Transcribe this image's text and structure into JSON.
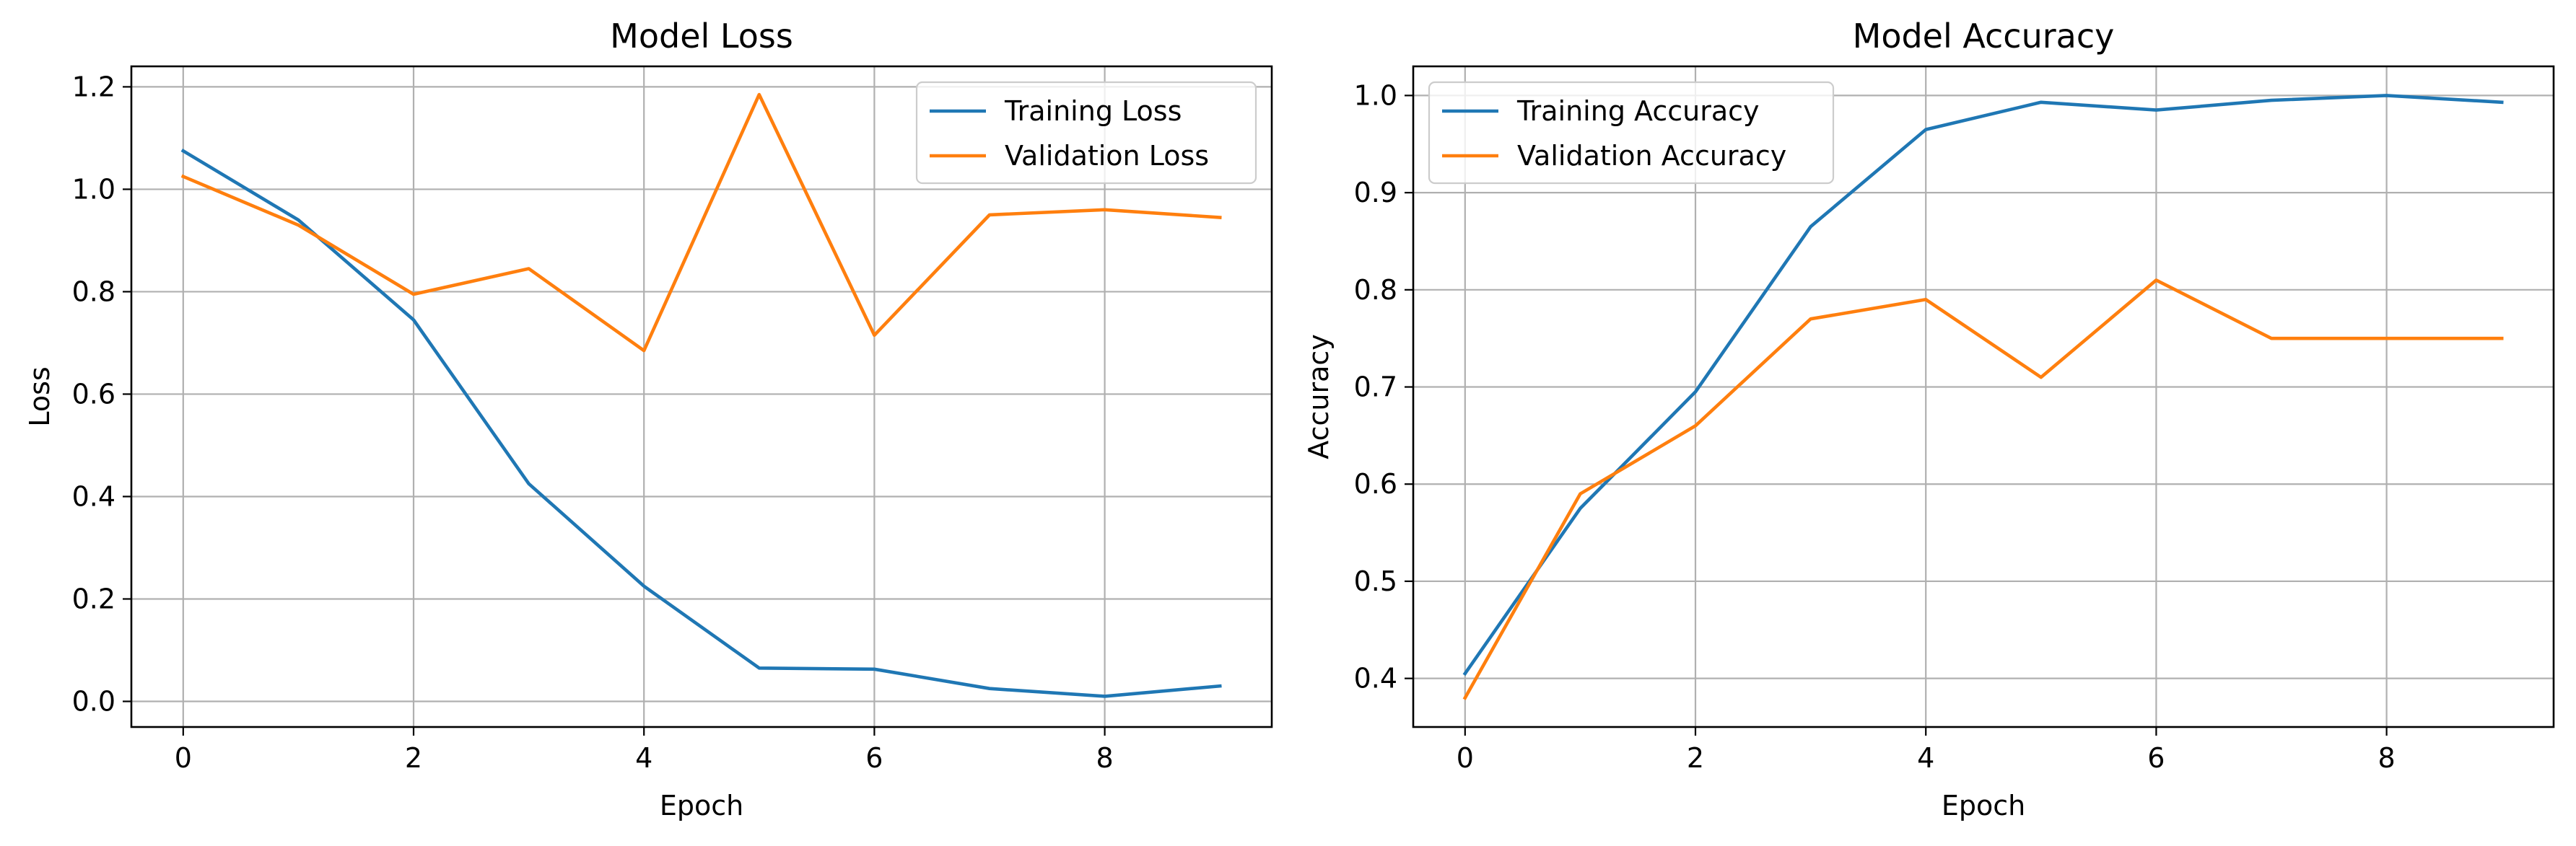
{
  "colors": {
    "series_1": "#1f77b4",
    "series_2": "#ff7f0e",
    "grid": "#b0b0b0"
  },
  "chart_data": [
    {
      "type": "line",
      "title": "Model Loss",
      "xlabel": "Epoch",
      "ylabel": "Loss",
      "x": [
        0,
        1,
        2,
        3,
        4,
        5,
        6,
        7,
        8,
        9
      ],
      "xlim": [
        -0.45,
        9.45
      ],
      "ylim": [
        -0.05,
        1.24
      ],
      "xticks": [
        0,
        2,
        4,
        6,
        8
      ],
      "xtick_labels": [
        "0",
        "2",
        "4",
        "6",
        "8"
      ],
      "yticks": [
        0.0,
        0.2,
        0.4,
        0.6,
        0.8,
        1.0,
        1.2
      ],
      "ytick_labels": [
        "0.0",
        "0.2",
        "0.4",
        "0.6",
        "0.8",
        "1.0",
        "1.2"
      ],
      "grid": true,
      "legend_position": "top-right",
      "series": [
        {
          "name": "Training Loss",
          "color": "#1f77b4",
          "values": [
            1.075,
            0.94,
            0.745,
            0.425,
            0.225,
            0.065,
            0.063,
            0.025,
            0.01,
            0.03
          ]
        },
        {
          "name": "Validation Loss",
          "color": "#ff7f0e",
          "values": [
            1.025,
            0.93,
            0.795,
            0.845,
            0.685,
            1.185,
            0.715,
            0.95,
            0.96,
            0.945
          ]
        }
      ]
    },
    {
      "type": "line",
      "title": "Model Accuracy",
      "xlabel": "Epoch",
      "ylabel": "Accuracy",
      "x": [
        0,
        1,
        2,
        3,
        4,
        5,
        6,
        7,
        8,
        9
      ],
      "xlim": [
        -0.45,
        9.45
      ],
      "ylim": [
        0.35,
        1.03
      ],
      "xticks": [
        0,
        2,
        4,
        6,
        8
      ],
      "xtick_labels": [
        "0",
        "2",
        "4",
        "6",
        "8"
      ],
      "yticks": [
        0.4,
        0.5,
        0.6,
        0.7,
        0.8,
        0.9,
        1.0
      ],
      "ytick_labels": [
        "0.4",
        "0.5",
        "0.6",
        "0.7",
        "0.8",
        "0.9",
        "1.0"
      ],
      "grid": true,
      "legend_position": "top-left",
      "series": [
        {
          "name": "Training Accuracy",
          "color": "#1f77b4",
          "values": [
            0.405,
            0.575,
            0.695,
            0.865,
            0.965,
            0.993,
            0.985,
            0.995,
            1.0,
            0.993
          ]
        },
        {
          "name": "Validation Accuracy",
          "color": "#ff7f0e",
          "values": [
            0.38,
            0.59,
            0.66,
            0.77,
            0.79,
            0.71,
            0.81,
            0.75,
            0.75,
            0.75
          ]
        }
      ]
    }
  ]
}
